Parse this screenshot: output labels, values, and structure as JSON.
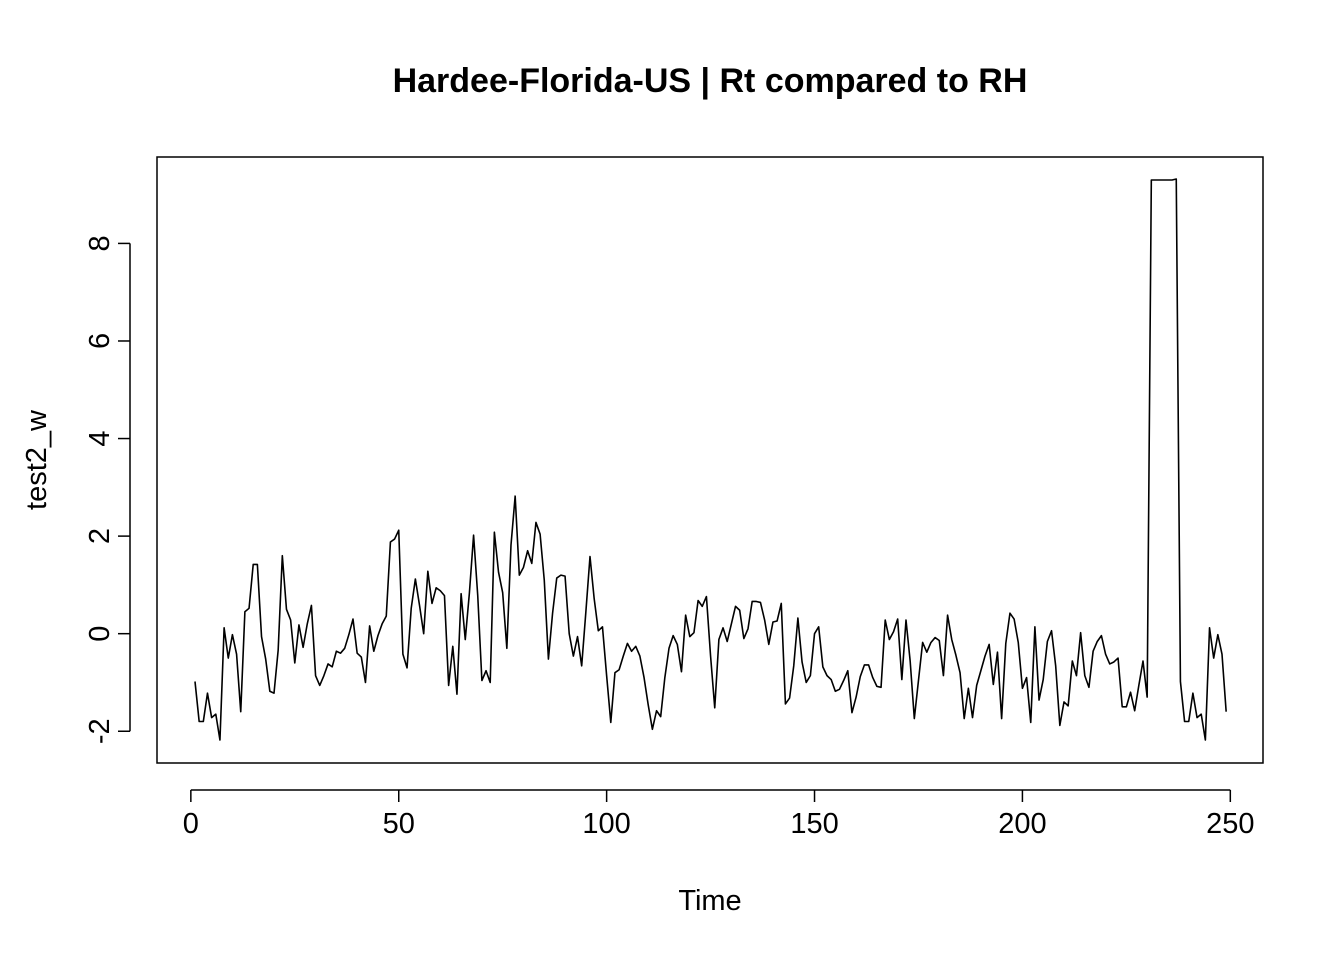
{
  "chart_data": {
    "type": "line",
    "title": "Hardee-Florida-US | Rt compared to RH",
    "xlabel": "Time",
    "ylabel": "test2_w",
    "xlim": [
      1,
      248
    ],
    "ylim": [
      -2.2,
      9.3
    ],
    "x_ticks": [
      0,
      50,
      100,
      150,
      200,
      250
    ],
    "y_ticks": [
      -2,
      0,
      2,
      4,
      6,
      8
    ],
    "grid": false,
    "legend": "none",
    "color": "#000000",
    "series": [
      {
        "values": [
          -0.98,
          -1.8,
          -1.8,
          -1.22,
          -1.72,
          -1.65,
          -2.18,
          0.12,
          -0.5,
          -0.02,
          -0.42,
          -1.6,
          0.45,
          0.52,
          1.42,
          1.42,
          -0.06,
          -0.52,
          -1.18,
          -1.22,
          -0.34,
          1.6,
          0.5,
          0.28,
          -0.6,
          0.18,
          -0.28,
          0.2,
          0.58,
          -0.86,
          -1.06,
          -0.86,
          -0.62,
          -0.68,
          -0.36,
          -0.4,
          -0.3,
          -0.02,
          0.3,
          -0.4,
          -0.48,
          -1.0,
          0.16,
          -0.36,
          -0.04,
          0.2,
          0.36,
          1.88,
          1.94,
          2.12,
          -0.42,
          -0.7,
          0.52,
          1.12,
          0.58,
          0.0,
          1.28,
          0.62,
          0.94,
          0.88,
          0.78,
          -1.06,
          -0.26,
          -1.24,
          0.82,
          -0.12,
          0.84,
          2.02,
          0.78,
          -0.96,
          -0.76,
          -1.0,
          2.08,
          1.26,
          0.84,
          -0.3,
          1.82,
          2.82,
          1.2,
          1.36,
          1.7,
          1.44,
          2.28,
          2.04,
          1.1,
          -0.52,
          0.42,
          1.14,
          1.2,
          1.18,
          0.0,
          -0.46,
          -0.06,
          -0.66,
          0.44,
          1.58,
          0.72,
          0.06,
          0.14,
          -0.86,
          -1.82,
          -0.8,
          -0.74,
          -0.46,
          -0.2,
          -0.36,
          -0.26,
          -0.46,
          -0.9,
          -1.46,
          -1.96,
          -1.58,
          -1.7,
          -0.9,
          -0.3,
          -0.04,
          -0.22,
          -0.78,
          0.38,
          -0.06,
          0.02,
          0.68,
          0.56,
          0.76,
          -0.46,
          -1.52,
          -0.12,
          0.12,
          -0.16,
          0.2,
          0.56,
          0.48,
          -0.1,
          0.1,
          0.66,
          0.66,
          0.64,
          0.28,
          -0.22,
          0.24,
          0.26,
          0.62,
          -1.44,
          -1.32,
          -0.66,
          0.32,
          -0.58,
          -1.0,
          -0.86,
          0.0,
          0.14,
          -0.68,
          -0.86,
          -0.94,
          -1.18,
          -1.14,
          -0.96,
          -0.76,
          -1.62,
          -1.3,
          -0.88,
          -0.64,
          -0.64,
          -0.9,
          -1.08,
          -1.1,
          0.28,
          -0.12,
          0.04,
          0.3,
          -0.94,
          0.28,
          -0.56,
          -1.74,
          -0.96,
          -0.18,
          -0.38,
          -0.18,
          -0.08,
          -0.14,
          -0.86,
          0.38,
          -0.12,
          -0.44,
          -0.8,
          -1.74,
          -1.12,
          -1.72,
          -1.06,
          -0.76,
          -0.46,
          -0.22,
          -1.04,
          -0.38,
          -1.74,
          -0.2,
          0.42,
          0.3,
          -0.18,
          -1.12,
          -0.9,
          -1.82,
          0.14,
          -1.36,
          -0.94,
          -0.16,
          0.06,
          -0.66,
          -1.88,
          -1.4,
          -1.48,
          -0.56,
          -0.86,
          0.02,
          -0.86,
          -1.1,
          -0.36,
          -0.16,
          -0.04,
          -0.42,
          -0.62,
          -0.58,
          -0.5,
          -1.5,
          -1.5,
          -1.2,
          -1.58,
          -1.06,
          -0.56,
          -1.3,
          9.3,
          9.3,
          9.3,
          9.3,
          9.3,
          9.3,
          9.32,
          -0.98,
          -1.8,
          -1.8,
          -1.22,
          -1.72,
          -1.65,
          -2.18,
          0.12,
          -0.5,
          -0.02,
          -0.42,
          -1.6
        ]
      }
    ]
  }
}
